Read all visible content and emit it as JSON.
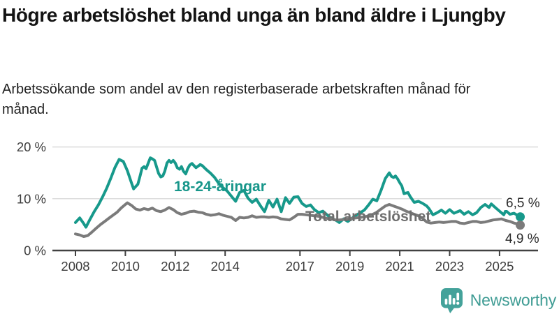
{
  "header": {
    "title": "Högre arbetslöshet bland unga än bland äldre i Ljungby",
    "subtitle": "Arbetssökande som andel av den registerbaserade arbetskraften månad för månad."
  },
  "logo": {
    "text": "Newsworthy",
    "color": "#3f9c94",
    "icon_color": "#44a29a"
  },
  "chart_data": {
    "type": "line",
    "title": "Högre arbetslöshet bland unga än bland äldre i Ljungby",
    "xlabel": "",
    "ylabel": "",
    "ylim": [
      0,
      20
    ],
    "yticks": [
      0,
      10,
      20
    ],
    "ytick_labels": [
      "0 %",
      "10 %",
      "20 %"
    ],
    "xticks": [
      2008,
      2010,
      2012,
      2014,
      2017,
      2019,
      2021,
      2023,
      2025
    ],
    "xtick_labels": [
      "2008",
      "2010",
      "2012",
      "2014",
      "2017",
      "2019",
      "2021",
      "2023",
      "2025"
    ],
    "grid": "horizontal-only",
    "legend_position": "inline-labels",
    "colors": {
      "grid": "#dcdcdc",
      "axis": "#414141",
      "tick_text": "#3d3d3d",
      "end_label_text": "#2b2b2b"
    },
    "series": [
      {
        "name": "18-24-åringar",
        "color": "#17998b",
        "label_color": "#17968a",
        "end_value": 6.5,
        "end_label": "6,5 %",
        "points": [
          [
            2008.0,
            5.4
          ],
          [
            2008.17,
            6.3
          ],
          [
            2008.33,
            5.2
          ],
          [
            2008.42,
            4.5
          ],
          [
            2008.58,
            6.0
          ],
          [
            2008.75,
            7.5
          ],
          [
            2008.92,
            8.8
          ],
          [
            2009.08,
            10.3
          ],
          [
            2009.25,
            12.0
          ],
          [
            2009.42,
            14.0
          ],
          [
            2009.58,
            16.0
          ],
          [
            2009.75,
            17.6
          ],
          [
            2009.92,
            17.2
          ],
          [
            2010.08,
            15.4
          ],
          [
            2010.25,
            13.0
          ],
          [
            2010.33,
            11.9
          ],
          [
            2010.5,
            12.8
          ],
          [
            2010.58,
            14.2
          ],
          [
            2010.67,
            15.9
          ],
          [
            2010.75,
            16.2
          ],
          [
            2010.83,
            15.8
          ],
          [
            2010.92,
            16.9
          ],
          [
            2011.0,
            17.9
          ],
          [
            2011.08,
            17.7
          ],
          [
            2011.17,
            17.4
          ],
          [
            2011.33,
            14.9
          ],
          [
            2011.42,
            14.2
          ],
          [
            2011.5,
            14.4
          ],
          [
            2011.58,
            15.3
          ],
          [
            2011.67,
            16.9
          ],
          [
            2011.75,
            17.4
          ],
          [
            2011.83,
            17.0
          ],
          [
            2011.92,
            17.4
          ],
          [
            2012.0,
            16.9
          ],
          [
            2012.08,
            16.0
          ],
          [
            2012.17,
            15.7
          ],
          [
            2012.25,
            16.2
          ],
          [
            2012.33,
            15.3
          ],
          [
            2012.42,
            14.8
          ],
          [
            2012.5,
            15.8
          ],
          [
            2012.58,
            16.5
          ],
          [
            2012.67,
            16.8
          ],
          [
            2012.75,
            16.4
          ],
          [
            2012.83,
            16.0
          ],
          [
            2012.92,
            16.3
          ],
          [
            2013.0,
            16.6
          ],
          [
            2013.08,
            16.4
          ],
          [
            2013.25,
            15.6
          ],
          [
            2013.42,
            14.9
          ],
          [
            2013.58,
            14.1
          ],
          [
            2013.75,
            12.9
          ],
          [
            2013.92,
            12.1
          ],
          [
            2014.08,
            11.5
          ],
          [
            2014.25,
            10.5
          ],
          [
            2014.42,
            9.5
          ],
          [
            2014.58,
            11.2
          ],
          [
            2014.75,
            11.6
          ],
          [
            2014.92,
            10.1
          ],
          [
            2015.08,
            9.3
          ],
          [
            2015.25,
            9.9
          ],
          [
            2015.42,
            8.6
          ],
          [
            2015.58,
            7.5
          ],
          [
            2015.75,
            9.7
          ],
          [
            2015.92,
            8.4
          ],
          [
            2016.08,
            9.9
          ],
          [
            2016.25,
            7.5
          ],
          [
            2016.42,
            10.2
          ],
          [
            2016.58,
            9.1
          ],
          [
            2016.75,
            10.3
          ],
          [
            2016.92,
            10.4
          ],
          [
            2017.08,
            9.1
          ],
          [
            2017.25,
            8.5
          ],
          [
            2017.42,
            8.8
          ],
          [
            2017.58,
            7.9
          ],
          [
            2017.75,
            7.3
          ],
          [
            2017.92,
            7.6
          ],
          [
            2018.08,
            6.9
          ],
          [
            2018.25,
            6.2
          ],
          [
            2018.42,
            5.9
          ],
          [
            2018.58,
            5.4
          ],
          [
            2018.75,
            6.1
          ],
          [
            2018.92,
            5.6
          ],
          [
            2019.08,
            6.2
          ],
          [
            2019.25,
            6.8
          ],
          [
            2019.42,
            7.3
          ],
          [
            2019.58,
            7.8
          ],
          [
            2019.75,
            8.8
          ],
          [
            2019.92,
            9.9
          ],
          [
            2020.08,
            9.6
          ],
          [
            2020.25,
            11.6
          ],
          [
            2020.42,
            13.9
          ],
          [
            2020.58,
            15.0
          ],
          [
            2020.67,
            14.3
          ],
          [
            2020.75,
            14.1
          ],
          [
            2020.83,
            14.4
          ],
          [
            2020.92,
            13.8
          ],
          [
            2021.0,
            13.1
          ],
          [
            2021.08,
            12.5
          ],
          [
            2021.17,
            11.0
          ],
          [
            2021.33,
            11.2
          ],
          [
            2021.42,
            10.4
          ],
          [
            2021.58,
            9.3
          ],
          [
            2021.75,
            9.5
          ],
          [
            2021.92,
            9.1
          ],
          [
            2022.08,
            8.6
          ],
          [
            2022.17,
            8.1
          ],
          [
            2022.33,
            6.9
          ],
          [
            2022.5,
            7.3
          ],
          [
            2022.67,
            7.8
          ],
          [
            2022.83,
            7.2
          ],
          [
            2023.0,
            7.9
          ],
          [
            2023.17,
            7.2
          ],
          [
            2023.42,
            7.7
          ],
          [
            2023.58,
            7.0
          ],
          [
            2023.75,
            7.5
          ],
          [
            2023.92,
            6.9
          ],
          [
            2024.08,
            7.3
          ],
          [
            2024.25,
            8.3
          ],
          [
            2024.42,
            8.9
          ],
          [
            2024.58,
            8.3
          ],
          [
            2024.67,
            9.0
          ],
          [
            2024.83,
            8.3
          ],
          [
            2025.0,
            7.6
          ],
          [
            2025.17,
            6.9
          ],
          [
            2025.25,
            7.7
          ],
          [
            2025.42,
            7.0
          ],
          [
            2025.58,
            7.2
          ],
          [
            2025.75,
            6.7
          ],
          [
            2025.83,
            6.5
          ]
        ]
      },
      {
        "name": "Total arbetslöshet",
        "color": "#7b7b7b",
        "label_color": "#6e6e6e",
        "end_value": 4.9,
        "end_label": "4,9 %",
        "points": [
          [
            2008.0,
            3.2
          ],
          [
            2008.17,
            3.0
          ],
          [
            2008.33,
            2.7
          ],
          [
            2008.5,
            2.9
          ],
          [
            2008.67,
            3.6
          ],
          [
            2008.83,
            4.3
          ],
          [
            2009.0,
            5.0
          ],
          [
            2009.17,
            5.6
          ],
          [
            2009.33,
            6.2
          ],
          [
            2009.5,
            6.8
          ],
          [
            2009.67,
            7.4
          ],
          [
            2009.83,
            8.2
          ],
          [
            2010.0,
            8.9
          ],
          [
            2010.08,
            9.2
          ],
          [
            2010.25,
            8.7
          ],
          [
            2010.42,
            8.0
          ],
          [
            2010.58,
            7.8
          ],
          [
            2010.75,
            8.1
          ],
          [
            2010.92,
            7.9
          ],
          [
            2011.08,
            8.2
          ],
          [
            2011.25,
            7.7
          ],
          [
            2011.42,
            7.5
          ],
          [
            2011.58,
            7.8
          ],
          [
            2011.75,
            8.3
          ],
          [
            2011.92,
            7.9
          ],
          [
            2012.08,
            7.3
          ],
          [
            2012.25,
            7.0
          ],
          [
            2012.42,
            7.2
          ],
          [
            2012.58,
            7.5
          ],
          [
            2012.75,
            7.6
          ],
          [
            2012.92,
            7.4
          ],
          [
            2013.08,
            7.3
          ],
          [
            2013.25,
            7.0
          ],
          [
            2013.42,
            6.8
          ],
          [
            2013.58,
            6.9
          ],
          [
            2013.75,
            7.1
          ],
          [
            2013.92,
            6.8
          ],
          [
            2014.08,
            6.6
          ],
          [
            2014.25,
            6.4
          ],
          [
            2014.42,
            5.8
          ],
          [
            2014.58,
            6.4
          ],
          [
            2014.75,
            6.3
          ],
          [
            2014.92,
            6.4
          ],
          [
            2015.08,
            6.7
          ],
          [
            2015.25,
            6.4
          ],
          [
            2015.42,
            6.5
          ],
          [
            2015.58,
            6.5
          ],
          [
            2015.75,
            6.4
          ],
          [
            2015.92,
            6.5
          ],
          [
            2016.08,
            6.4
          ],
          [
            2016.25,
            6.1
          ],
          [
            2016.42,
            6.0
          ],
          [
            2016.58,
            5.9
          ],
          [
            2016.75,
            6.4
          ],
          [
            2016.92,
            7.0
          ],
          [
            2017.08,
            7.0
          ],
          [
            2017.25,
            6.9
          ],
          [
            2017.42,
            6.8
          ],
          [
            2017.58,
            6.7
          ],
          [
            2017.75,
            6.6
          ],
          [
            2017.92,
            6.4
          ],
          [
            2018.08,
            6.2
          ],
          [
            2018.25,
            6.1
          ],
          [
            2018.42,
            5.9
          ],
          [
            2018.58,
            5.9
          ],
          [
            2018.75,
            6.0
          ],
          [
            2018.92,
            6.1
          ],
          [
            2019.08,
            6.2
          ],
          [
            2019.25,
            6.3
          ],
          [
            2019.42,
            6.4
          ],
          [
            2019.58,
            6.5
          ],
          [
            2019.75,
            6.7
          ],
          [
            2019.92,
            7.0
          ],
          [
            2020.08,
            7.4
          ],
          [
            2020.25,
            8.0
          ],
          [
            2020.42,
            8.6
          ],
          [
            2020.58,
            8.9
          ],
          [
            2020.75,
            8.6
          ],
          [
            2020.92,
            8.3
          ],
          [
            2021.08,
            8.0
          ],
          [
            2021.25,
            7.6
          ],
          [
            2021.42,
            7.3
          ],
          [
            2021.58,
            7.0
          ],
          [
            2021.75,
            6.7
          ],
          [
            2021.92,
            6.2
          ],
          [
            2022.08,
            5.5
          ],
          [
            2022.25,
            5.3
          ],
          [
            2022.42,
            5.4
          ],
          [
            2022.58,
            5.5
          ],
          [
            2022.75,
            5.4
          ],
          [
            2022.92,
            5.5
          ],
          [
            2023.08,
            5.6
          ],
          [
            2023.25,
            5.6
          ],
          [
            2023.42,
            5.3
          ],
          [
            2023.58,
            5.2
          ],
          [
            2023.75,
            5.4
          ],
          [
            2023.92,
            5.6
          ],
          [
            2024.08,
            5.6
          ],
          [
            2024.25,
            5.4
          ],
          [
            2024.42,
            5.5
          ],
          [
            2024.58,
            5.7
          ],
          [
            2024.75,
            5.9
          ],
          [
            2024.92,
            6.0
          ],
          [
            2025.08,
            6.1
          ],
          [
            2025.25,
            5.8
          ],
          [
            2025.42,
            5.6
          ],
          [
            2025.58,
            5.3
          ],
          [
            2025.75,
            5.1
          ],
          [
            2025.83,
            4.9
          ]
        ]
      }
    ]
  }
}
